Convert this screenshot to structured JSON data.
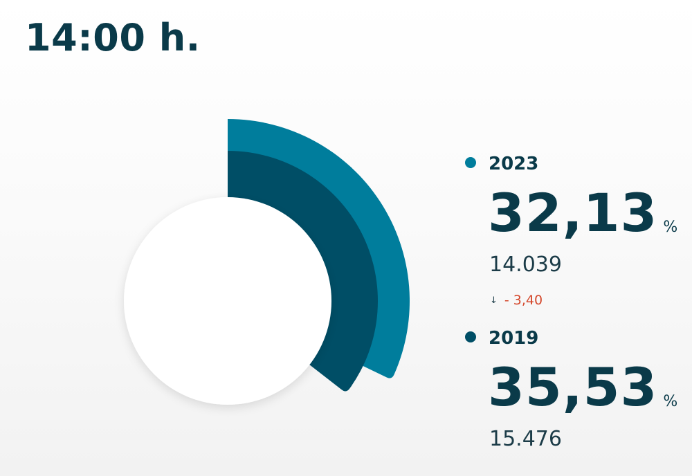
{
  "header": {
    "title": "14:00 h."
  },
  "colors": {
    "series_2023": "#007d9c",
    "series_2019": "#004e66",
    "delta_negative": "#d4472b"
  },
  "legend": [
    {
      "year": "2023",
      "percent": "32,13",
      "unit": "%",
      "count": "14.039",
      "color": "#007d9c"
    },
    {
      "year": "2019",
      "percent": "35,53",
      "unit": "%",
      "count": "15.476",
      "color": "#004e66"
    }
  ],
  "delta": {
    "arrow_icon": "arrow-down-icon",
    "arrow": "↓",
    "value": "- 3,40"
  },
  "chart_data": {
    "type": "radial-bar",
    "series": [
      {
        "name": "2023",
        "value": 32.13,
        "unit": "%",
        "count": 14039
      },
      {
        "name": "2019",
        "value": 35.53,
        "unit": "%",
        "count": 15476
      }
    ],
    "max": 100,
    "delta": -3.4
  }
}
